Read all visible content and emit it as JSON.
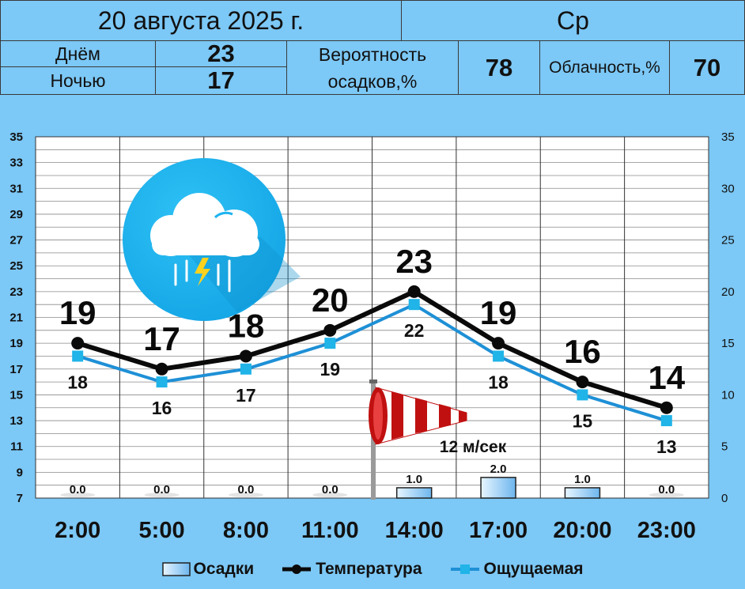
{
  "header": {
    "date": "20 августа 2025 г.",
    "weekday": "Ср",
    "day_label": "Днём",
    "day_value": "23",
    "night_label": "Ночью",
    "night_value": "17",
    "precip_label_line1": "Вероятность",
    "precip_label_line2": "осадков,%",
    "precip_value": "78",
    "cloud_label": "Облачность,%",
    "cloud_value": "70"
  },
  "wind": {
    "text": "12 м/сек",
    "icon": "windsock-icon"
  },
  "weather_icon": "thunderstorm-cloud-icon",
  "colors": {
    "background": "#7cc8f6",
    "temperature": "#0a0a0a",
    "feels_like": "#1e90d6",
    "precip_bar": "#9fd0f5",
    "icon_circle": "#1fb3ef"
  },
  "chart_data": {
    "type": "line",
    "categories": [
      "2:00",
      "5:00",
      "8:00",
      "11:00",
      "14:00",
      "17:00",
      "20:00",
      "23:00"
    ],
    "series": [
      {
        "name": "Температура",
        "type": "line",
        "axis": "left",
        "values": [
          19,
          17,
          18,
          20,
          23,
          19,
          16,
          14
        ]
      },
      {
        "name": "Ощущаемая",
        "type": "line",
        "axis": "left",
        "values": [
          18,
          16,
          17,
          19,
          22,
          18,
          15,
          13
        ]
      },
      {
        "name": "Осадки",
        "type": "bar",
        "axis": "right",
        "values": [
          0.0,
          0.0,
          0.0,
          0.0,
          1.0,
          2.0,
          1.0,
          0.0
        ],
        "labels": [
          "0.0",
          "0.0",
          "0.0",
          "0.0",
          "1.0",
          "2.0",
          "1.0",
          "0.0"
        ]
      }
    ],
    "left_axis": {
      "ylim": [
        7,
        35
      ],
      "ticks": [
        "7",
        "9",
        "11",
        "13",
        "15",
        "17",
        "19",
        "21",
        "23",
        "25",
        "27",
        "29",
        "31",
        "33",
        "35"
      ]
    },
    "right_axis": {
      "ylim": [
        0,
        35
      ],
      "ticks": [
        "0",
        "5",
        "10",
        "15",
        "20",
        "25",
        "30",
        "35"
      ]
    },
    "grid": true,
    "legend": {
      "position": "bottom",
      "entries": [
        "Осадки",
        "Температура",
        "Ощущаемая"
      ]
    }
  }
}
